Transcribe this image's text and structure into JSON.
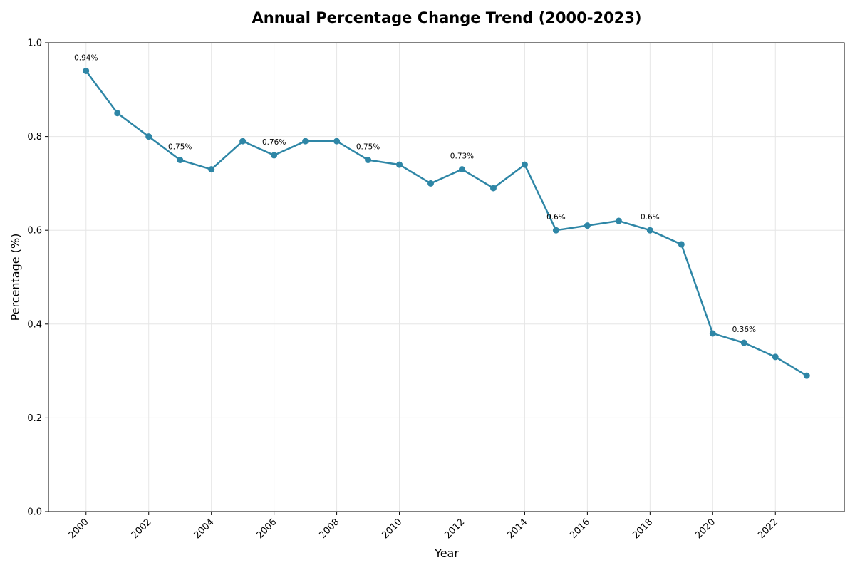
{
  "chart_data": {
    "type": "line",
    "title": "Annual Percentage Change Trend (2000-2023)",
    "xlabel": "Year",
    "ylabel": "Percentage (%)",
    "x": [
      2000,
      2001,
      2002,
      2003,
      2004,
      2005,
      2006,
      2007,
      2008,
      2009,
      2010,
      2011,
      2012,
      2013,
      2014,
      2015,
      2016,
      2017,
      2018,
      2019,
      2020,
      2021,
      2022,
      2023
    ],
    "series": [
      {
        "values": [
          0.94,
          0.85,
          0.8,
          0.75,
          0.73,
          0.79,
          0.76,
          0.79,
          0.79,
          0.75,
          0.74,
          0.7,
          0.73,
          0.69,
          0.74,
          0.6,
          0.61,
          0.62,
          0.6,
          0.57,
          0.38,
          0.36,
          0.33,
          0.29
        ],
        "color": "#2e86a6"
      }
    ],
    "annotations": [
      {
        "x": 2000,
        "y": 0.94,
        "text": "0.94%"
      },
      {
        "x": 2003,
        "y": 0.75,
        "text": "0.75%"
      },
      {
        "x": 2006,
        "y": 0.76,
        "text": "0.76%"
      },
      {
        "x": 2009,
        "y": 0.75,
        "text": "0.75%"
      },
      {
        "x": 2012,
        "y": 0.73,
        "text": "0.73%"
      },
      {
        "x": 2015,
        "y": 0.6,
        "text": "0.6%"
      },
      {
        "x": 2018,
        "y": 0.6,
        "text": "0.6%"
      },
      {
        "x": 2021,
        "y": 0.36,
        "text": "0.36%"
      }
    ],
    "x_ticks": [
      "2000",
      "2002",
      "2004",
      "2006",
      "2008",
      "2010",
      "2012",
      "2014",
      "2016",
      "2018",
      "2020",
      "2022"
    ],
    "y_ticks": [
      "0.0",
      "0.2",
      "0.4",
      "0.6",
      "0.8",
      "1.0"
    ],
    "xlim": [
      1998.8,
      2024.2
    ],
    "ylim": [
      0,
      1.0
    ],
    "grid": true,
    "legend": "none"
  }
}
